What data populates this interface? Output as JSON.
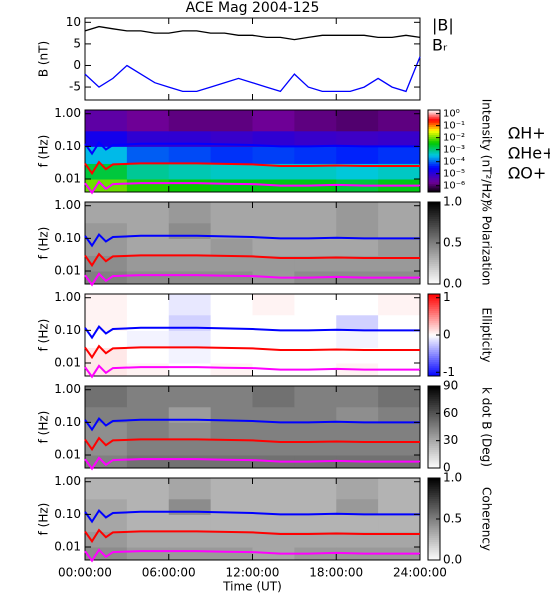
{
  "chart_data": [
    {
      "type": "line",
      "title": "ACE Mag 2004-125",
      "ylabel": "B (nT)",
      "xlim": [
        0,
        24
      ],
      "xticks": [
        0,
        6,
        12,
        18,
        24
      ],
      "ylim": [
        -8,
        11
      ],
      "yticks": [
        -5,
        0,
        5,
        10
      ],
      "x": [
        0,
        1,
        2,
        3,
        4,
        5,
        6,
        7,
        8,
        9,
        10,
        11,
        12,
        13,
        14,
        15,
        16,
        17,
        18,
        19,
        20,
        21,
        22,
        23,
        24
      ],
      "series": [
        {
          "name": "|B|",
          "color": "#000000",
          "values": [
            8,
            9,
            8.5,
            8,
            8,
            7.5,
            7.5,
            8,
            8,
            7.5,
            7.5,
            7,
            7,
            6.5,
            6.5,
            6,
            6.5,
            7,
            7,
            7,
            7,
            6.5,
            6.5,
            7,
            6.5
          ]
        },
        {
          "name": "Bᵣ",
          "color": "#0000ff",
          "values": [
            -2,
            -5,
            -3,
            0,
            -2,
            -4,
            -5,
            -6,
            -6,
            -5,
            -4,
            -3,
            -4,
            -5,
            -6,
            -2,
            -5,
            -6,
            -6,
            -6,
            -5,
            -3,
            -5,
            -6,
            2
          ]
        }
      ]
    },
    {
      "type": "heatmap",
      "ylabel": "f (Hz)",
      "xlim": [
        0,
        24
      ],
      "xticks": [
        0,
        6,
        12,
        18,
        24
      ],
      "ylim": [
        0.004,
        1.3
      ],
      "ylog": true,
      "yticks": [
        {
          "value": 0.01,
          "label": "0.01"
        },
        {
          "value": 0.1,
          "label": "0.10"
        },
        {
          "value": 1,
          "label": "1.00"
        }
      ],
      "xbins": [
        0,
        3,
        6,
        9,
        12,
        15,
        18,
        21,
        24
      ],
      "ybins": [
        0.004,
        0.01,
        0.03,
        0.1,
        0.3,
        1.3
      ],
      "z": [
        [
          0.01,
          0.005,
          0.004,
          0.003,
          0.003,
          0.003,
          0.002,
          0.003
        ],
        [
          0.002,
          0.0008,
          0.0006,
          0.0005,
          0.0005,
          0.0005,
          0.0004,
          0.0005
        ],
        [
          0.0003,
          0.0001,
          8e-05,
          6e-05,
          7e-05,
          6e-05,
          5e-05,
          6e-05
        ],
        [
          2e-05,
          1e-05,
          1e-05,
          8e-06,
          1e-05,
          8e-06,
          7e-06,
          8e-06
        ],
        [
          3e-06,
          2e-06,
          1.5e-06,
          1.5e-06,
          2e-06,
          1.5e-06,
          1.2e-06,
          1.5e-06
        ]
      ],
      "colormap": "rainbow",
      "clog": true,
      "clim": [
        3e-07,
        2
      ],
      "colorbar_label": "Intensity (nT²/Hz)",
      "cticks": [
        {
          "value": 1,
          "label": "10⁰"
        },
        {
          "value": 0.1,
          "label": "10⁻¹"
        },
        {
          "value": 0.01,
          "label": "10⁻²"
        },
        {
          "value": 0.001,
          "label": "10⁻³"
        },
        {
          "value": 0.0001,
          "label": "10⁻⁴"
        },
        {
          "value": 1e-05,
          "label": "10⁻⁵"
        },
        {
          "value": 1e-06,
          "label": "10⁻⁶"
        }
      ],
      "x": [
        0,
        0.5,
        1,
        1.5,
        2,
        4,
        6,
        8,
        10,
        12,
        14,
        16,
        18,
        20,
        22,
        24
      ],
      "series": [
        {
          "name": "ΩH+",
          "color": "#0000ff",
          "values": [
            0.12,
            0.06,
            0.13,
            0.08,
            0.11,
            0.12,
            0.12,
            0.12,
            0.115,
            0.11,
            0.1,
            0.1,
            0.105,
            0.1,
            0.1,
            0.1
          ]
        },
        {
          "name": "ΩHe+",
          "color": "#ff0000",
          "values": [
            0.03,
            0.015,
            0.033,
            0.02,
            0.028,
            0.03,
            0.03,
            0.03,
            0.029,
            0.028,
            0.025,
            0.025,
            0.026,
            0.025,
            0.025,
            0.025
          ]
        },
        {
          "name": "ΩO+",
          "color": "#ff00ff",
          "values": [
            0.0075,
            0.0038,
            0.0082,
            0.005,
            0.007,
            0.0075,
            0.0075,
            0.0075,
            0.0072,
            0.007,
            0.0063,
            0.0063,
            0.0066,
            0.0063,
            0.0063,
            0.0063
          ]
        }
      ]
    },
    {
      "type": "heatmap",
      "ylabel": "f (Hz)",
      "xlim": [
        0,
        24
      ],
      "xticks": [
        0,
        6,
        12,
        18,
        24
      ],
      "ylim": [
        0.004,
        1.3
      ],
      "ylog": true,
      "yticks": [
        {
          "value": 0.01,
          "label": "0.01"
        },
        {
          "value": 0.1,
          "label": "0.10"
        },
        {
          "value": 1,
          "label": "1.00"
        }
      ],
      "xbins": [
        0,
        3,
        6,
        9,
        12,
        15,
        18,
        21,
        24
      ],
      "ybins": [
        0.004,
        0.01,
        0.03,
        0.1,
        0.3,
        1.3
      ],
      "z": [
        [
          0.5,
          0.45,
          0.45,
          0.45,
          0.4,
          0.45,
          0.45,
          0.45
        ],
        [
          0.45,
          0.4,
          0.4,
          0.4,
          0.4,
          0.4,
          0.4,
          0.4
        ],
        [
          0.4,
          0.35,
          0.35,
          0.4,
          0.35,
          0.35,
          0.35,
          0.4
        ],
        [
          0.4,
          0.35,
          0.45,
          0.35,
          0.35,
          0.35,
          0.4,
          0.35
        ],
        [
          0.35,
          0.35,
          0.4,
          0.35,
          0.35,
          0.35,
          0.4,
          0.35
        ]
      ],
      "colormap": "gray_r",
      "clim": [
        0,
        1
      ],
      "colorbar_label": "% Polarization",
      "cticks": [
        {
          "value": 0,
          "label": "0.0"
        },
        {
          "value": 0.5,
          "label": "0.5"
        },
        {
          "value": 1,
          "label": "1.0"
        }
      ],
      "x": [
        0,
        0.5,
        1,
        1.5,
        2,
        4,
        6,
        8,
        10,
        12,
        14,
        16,
        18,
        20,
        22,
        24
      ],
      "series": [
        {
          "color": "#0000ff",
          "values": [
            0.12,
            0.06,
            0.13,
            0.08,
            0.11,
            0.12,
            0.12,
            0.12,
            0.115,
            0.11,
            0.1,
            0.1,
            0.105,
            0.1,
            0.1,
            0.1
          ]
        },
        {
          "color": "#ff0000",
          "values": [
            0.03,
            0.015,
            0.033,
            0.02,
            0.028,
            0.03,
            0.03,
            0.03,
            0.029,
            0.028,
            0.025,
            0.025,
            0.026,
            0.025,
            0.025,
            0.025
          ]
        },
        {
          "color": "#ff00ff",
          "values": [
            0.0075,
            0.0038,
            0.0082,
            0.005,
            0.007,
            0.0075,
            0.0075,
            0.0075,
            0.0072,
            0.007,
            0.0063,
            0.0063,
            0.0066,
            0.0063,
            0.0063,
            0.0063
          ]
        }
      ]
    },
    {
      "type": "heatmap",
      "ylabel": "f (Hz)",
      "xlim": [
        0,
        24
      ],
      "xticks": [
        0,
        6,
        12,
        18,
        24
      ],
      "ylim": [
        0.004,
        1.3
      ],
      "ylog": true,
      "yticks": [
        {
          "value": 0.01,
          "label": "0.01"
        },
        {
          "value": 0.1,
          "label": "0.10"
        },
        {
          "value": 1,
          "label": "1.00"
        }
      ],
      "xbins": [
        0,
        3,
        6,
        9,
        12,
        15,
        18,
        21,
        24
      ],
      "ybins": [
        0.004,
        0.01,
        0.03,
        0.1,
        0.3,
        1.3
      ],
      "z": [
        [
          0.1,
          0.05,
          0,
          0.05,
          0,
          0,
          0.05,
          0
        ],
        [
          0.1,
          0,
          -0.05,
          0,
          0,
          0,
          0,
          0
        ],
        [
          0,
          -0.05,
          -0.1,
          0,
          0,
          0,
          -0.05,
          0
        ],
        [
          0.05,
          0,
          -0.2,
          0,
          0,
          0,
          -0.2,
          0
        ],
        [
          0.05,
          0,
          -0.1,
          0,
          0.05,
          0,
          0,
          0.05
        ]
      ],
      "colormap": "bwr",
      "clim": [
        -1.1,
        1.1
      ],
      "colorbar_label": "Ellipticity",
      "cticks": [
        -1,
        0,
        1
      ],
      "x": [
        0,
        0.5,
        1,
        1.5,
        2,
        4,
        6,
        8,
        10,
        12,
        14,
        16,
        18,
        20,
        22,
        24
      ],
      "series": [
        {
          "color": "#0000ff",
          "values": [
            0.12,
            0.06,
            0.13,
            0.08,
            0.11,
            0.12,
            0.12,
            0.12,
            0.115,
            0.11,
            0.1,
            0.1,
            0.105,
            0.1,
            0.1,
            0.1
          ]
        },
        {
          "color": "#ff0000",
          "values": [
            0.03,
            0.015,
            0.033,
            0.02,
            0.028,
            0.03,
            0.03,
            0.03,
            0.029,
            0.028,
            0.025,
            0.025,
            0.026,
            0.025,
            0.025,
            0.025
          ]
        },
        {
          "color": "#ff00ff",
          "values": [
            0.0075,
            0.0038,
            0.0082,
            0.005,
            0.007,
            0.0075,
            0.0075,
            0.0075,
            0.0072,
            0.007,
            0.0063,
            0.0063,
            0.0066,
            0.0063,
            0.0063,
            0.0063
          ]
        }
      ]
    },
    {
      "type": "heatmap",
      "ylabel": "f (Hz)",
      "xlim": [
        0,
        24
      ],
      "xticks": [
        0,
        6,
        12,
        18,
        24
      ],
      "ylim": [
        0.004,
        1.3
      ],
      "ylog": true,
      "yticks": [
        {
          "value": 0.01,
          "label": "0.01"
        },
        {
          "value": 0.1,
          "label": "0.10"
        },
        {
          "value": 1,
          "label": "1.00"
        }
      ],
      "xbins": [
        0,
        3,
        6,
        9,
        12,
        15,
        18,
        21,
        24
      ],
      "ybins": [
        0.004,
        0.01,
        0.03,
        0.1,
        0.3,
        1.3
      ],
      "z": [
        [
          45,
          50,
          50,
          50,
          50,
          50,
          50,
          50
        ],
        [
          40,
          45,
          45,
          45,
          45,
          45,
          45,
          45
        ],
        [
          40,
          45,
          40,
          45,
          45,
          45,
          45,
          45
        ],
        [
          45,
          45,
          35,
          45,
          45,
          45,
          40,
          45
        ],
        [
          50,
          45,
          45,
          45,
          50,
          45,
          45,
          50
        ]
      ],
      "colormap": "gray_r",
      "clim": [
        0,
        90
      ],
      "colorbar_label": "k dot B (Deg)",
      "cticks": [
        0,
        30,
        60,
        90
      ],
      "x": [
        0,
        0.5,
        1,
        1.5,
        2,
        4,
        6,
        8,
        10,
        12,
        14,
        16,
        18,
        20,
        22,
        24
      ],
      "series": [
        {
          "color": "#0000ff",
          "values": [
            0.12,
            0.06,
            0.13,
            0.08,
            0.11,
            0.12,
            0.12,
            0.12,
            0.115,
            0.11,
            0.1,
            0.1,
            0.105,
            0.1,
            0.1,
            0.1
          ]
        },
        {
          "color": "#ff0000",
          "values": [
            0.03,
            0.015,
            0.033,
            0.02,
            0.028,
            0.03,
            0.03,
            0.03,
            0.029,
            0.028,
            0.025,
            0.025,
            0.026,
            0.025,
            0.025,
            0.025
          ]
        },
        {
          "color": "#ff00ff",
          "values": [
            0.0075,
            0.0038,
            0.0082,
            0.005,
            0.007,
            0.0075,
            0.0075,
            0.0075,
            0.0072,
            0.007,
            0.0063,
            0.0063,
            0.0066,
            0.0063,
            0.0063,
            0.0063
          ]
        }
      ]
    },
    {
      "type": "heatmap",
      "ylabel": "f (Hz)",
      "xlabel": "Time (UT)",
      "xlim": [
        0,
        24
      ],
      "xticks": [
        {
          "value": 0,
          "label": "00:00:00"
        },
        {
          "value": 6,
          "label": "06:00:00"
        },
        {
          "value": 12,
          "label": "12:00:00"
        },
        {
          "value": 18,
          "label": "18:00:00"
        },
        {
          "value": 24,
          "label": "24:00:00"
        }
      ],
      "ylim": [
        0.004,
        1.3
      ],
      "ylog": true,
      "yticks": [
        {
          "value": 0.01,
          "label": "0.01"
        },
        {
          "value": 0.1,
          "label": "0.10"
        },
        {
          "value": 1,
          "label": "1.00"
        }
      ],
      "xbins": [
        0,
        3,
        6,
        9,
        12,
        15,
        18,
        21,
        24
      ],
      "ybins": [
        0.004,
        0.01,
        0.03,
        0.1,
        0.3,
        1.3
      ],
      "z": [
        [
          0.45,
          0.4,
          0.4,
          0.4,
          0.35,
          0.4,
          0.4,
          0.4
        ],
        [
          0.4,
          0.35,
          0.35,
          0.35,
          0.35,
          0.35,
          0.35,
          0.35
        ],
        [
          0.35,
          0.3,
          0.3,
          0.3,
          0.3,
          0.3,
          0.3,
          0.3
        ],
        [
          0.35,
          0.3,
          0.45,
          0.3,
          0.3,
          0.3,
          0.4,
          0.3
        ],
        [
          0.3,
          0.3,
          0.35,
          0.3,
          0.3,
          0.3,
          0.35,
          0.3
        ]
      ],
      "colormap": "gray_r",
      "clim": [
        0,
        1
      ],
      "colorbar_label": "Coherency",
      "cticks": [
        {
          "value": 0,
          "label": "0.0"
        },
        {
          "value": 0.5,
          "label": "0.5"
        },
        {
          "value": 1,
          "label": "1.0"
        }
      ],
      "x": [
        0,
        0.5,
        1,
        1.5,
        2,
        4,
        6,
        8,
        10,
        12,
        14,
        16,
        18,
        20,
        22,
        24
      ],
      "series": [
        {
          "color": "#0000ff",
          "values": [
            0.12,
            0.06,
            0.13,
            0.08,
            0.11,
            0.12,
            0.12,
            0.12,
            0.115,
            0.11,
            0.1,
            0.1,
            0.105,
            0.1,
            0.1,
            0.1
          ]
        },
        {
          "color": "#ff0000",
          "values": [
            0.03,
            0.015,
            0.033,
            0.02,
            0.028,
            0.03,
            0.03,
            0.03,
            0.029,
            0.028,
            0.025,
            0.025,
            0.026,
            0.025,
            0.025,
            0.025
          ]
        },
        {
          "color": "#ff00ff",
          "values": [
            0.0075,
            0.0038,
            0.0082,
            0.005,
            0.007,
            0.0075,
            0.0075,
            0.0075,
            0.0072,
            0.007,
            0.0063,
            0.0063,
            0.0066,
            0.0063,
            0.0063,
            0.0063
          ]
        }
      ]
    }
  ]
}
